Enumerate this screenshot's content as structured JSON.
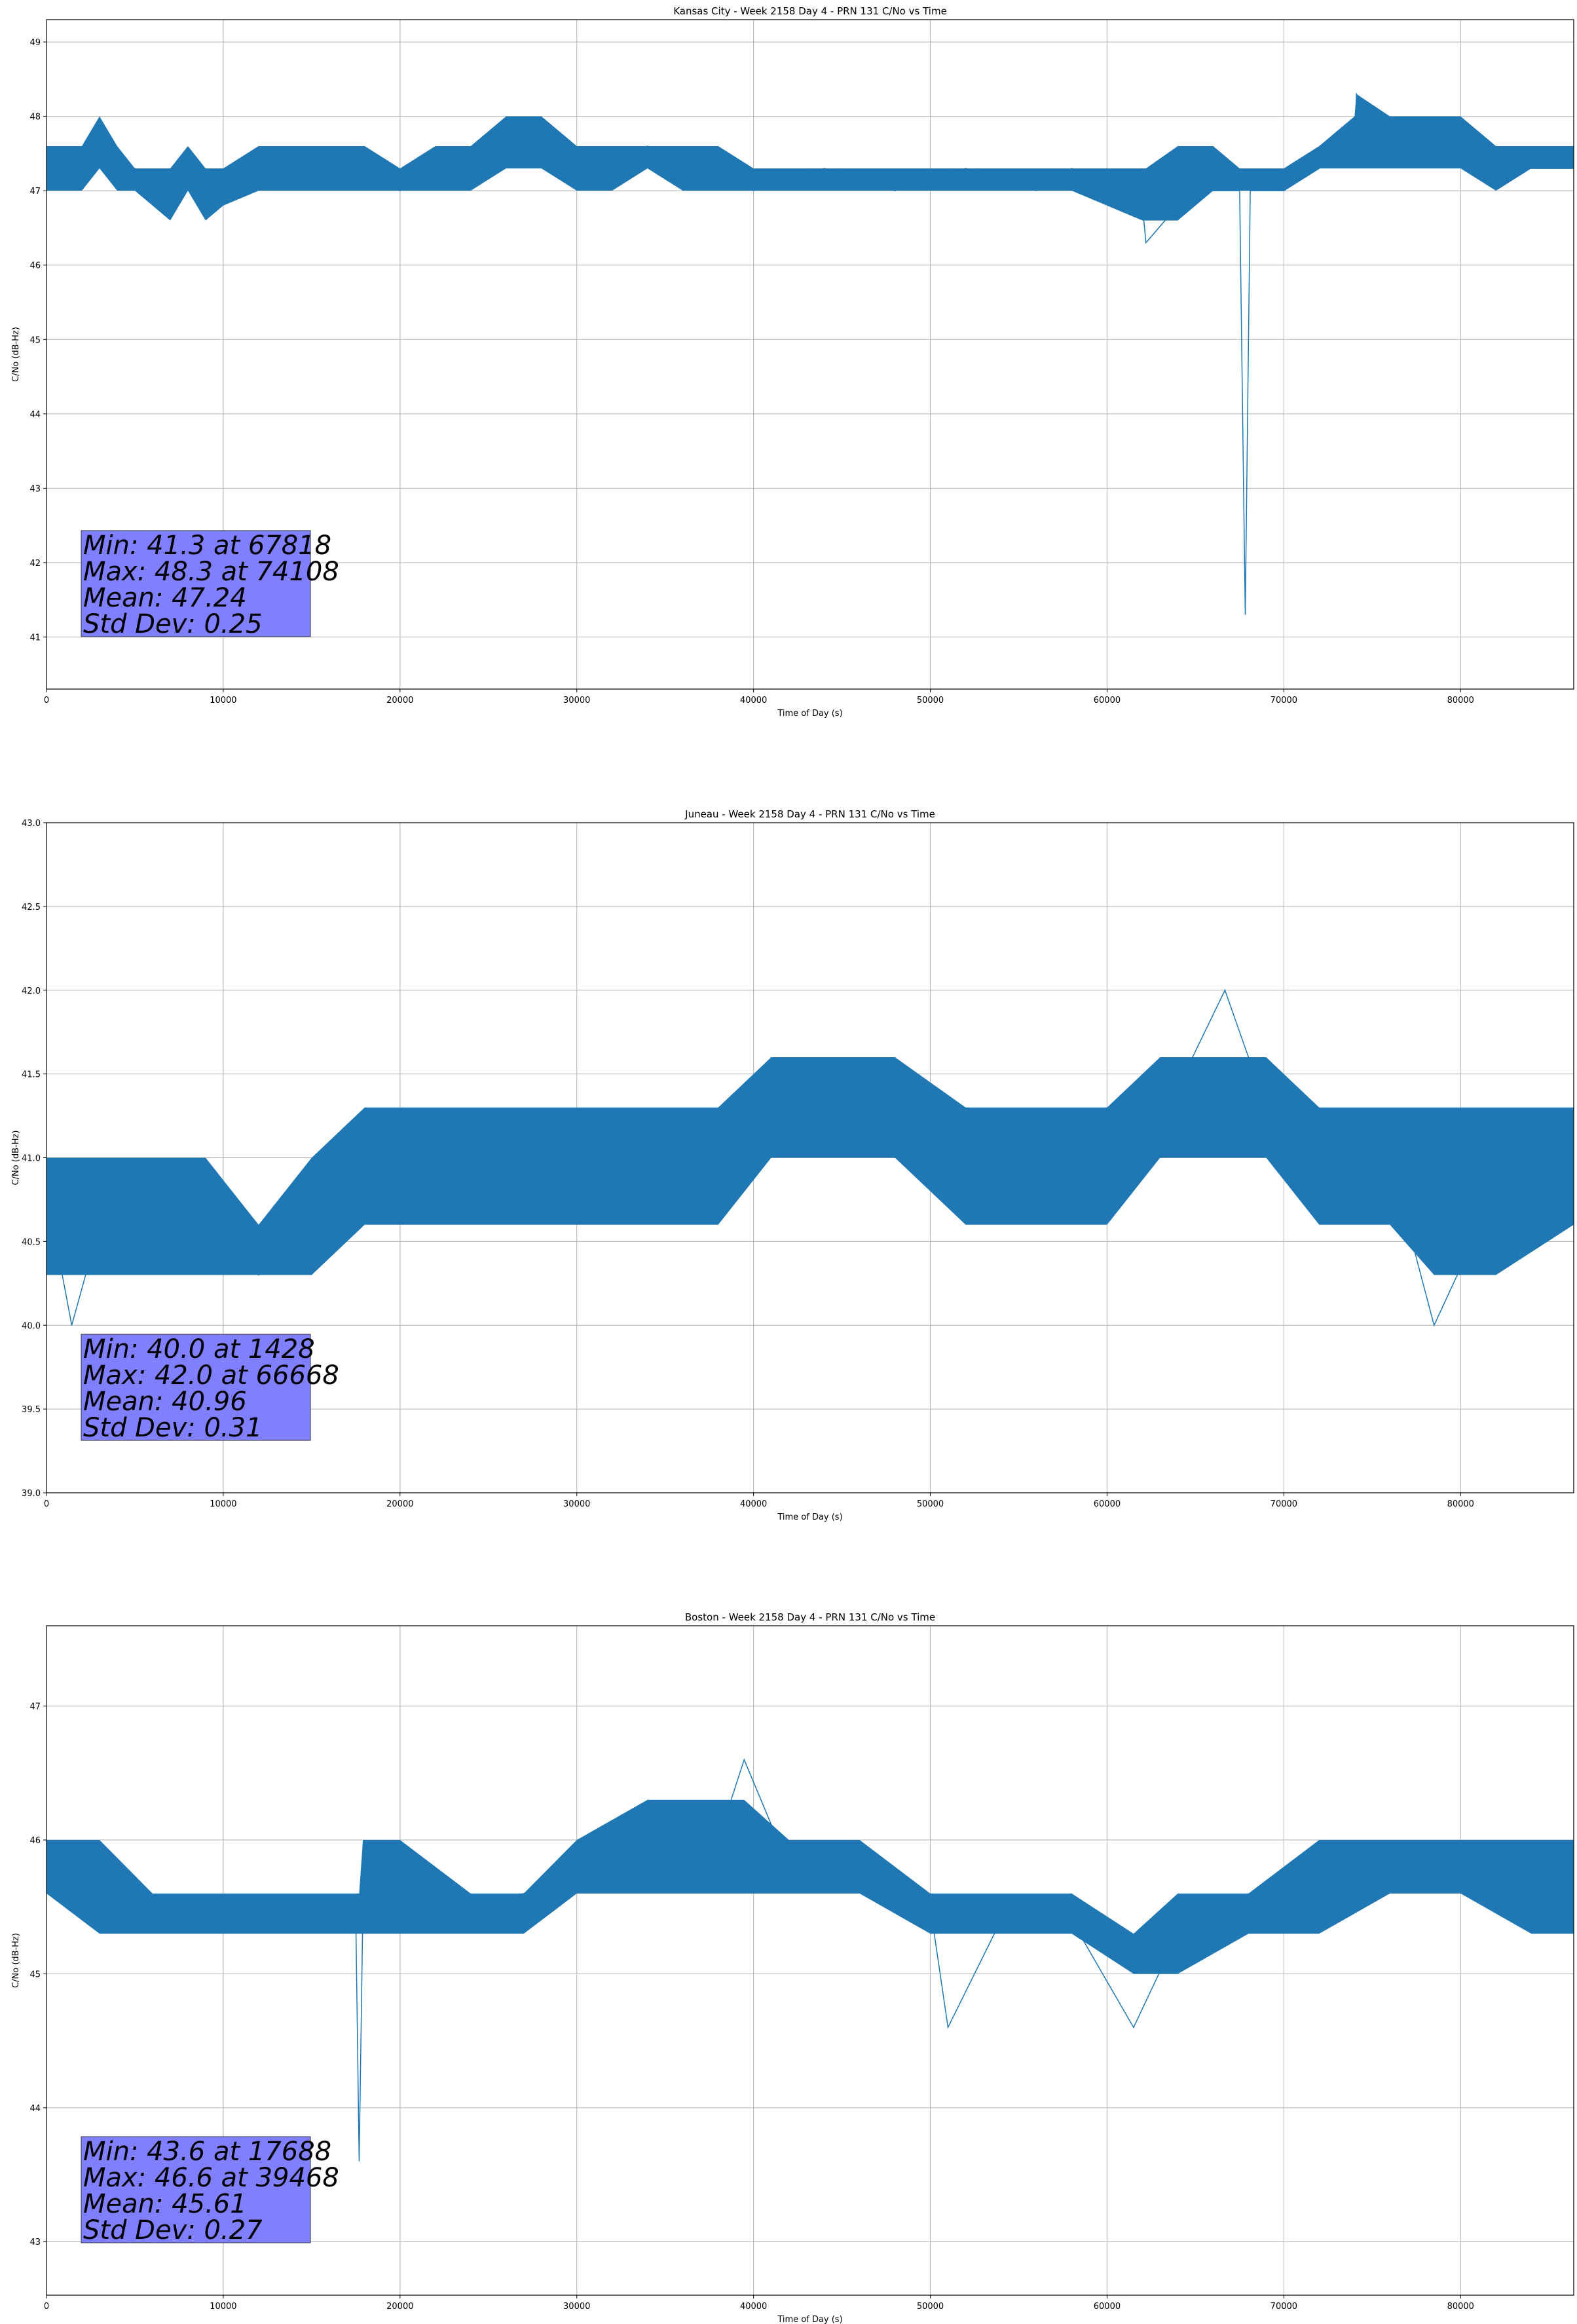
{
  "colors": {
    "line": "#1f77b4",
    "grid": "#b0b0b0",
    "statbox": "#8080ff"
  },
  "chart_data": [
    {
      "type": "line",
      "title": "Kansas City - Week 2158 Day 4 - PRN 131 C/No vs Time",
      "xlabel": "Time of Day (s)",
      "ylabel": "C/No (dB-Hz)",
      "xlim": [
        0,
        86400
      ],
      "ylim": [
        40.3,
        49.3
      ],
      "xticks": [
        0,
        10000,
        20000,
        30000,
        40000,
        50000,
        60000,
        70000,
        80000
      ],
      "yticks": [
        41,
        42,
        43,
        44,
        45,
        46,
        47,
        48,
        49
      ],
      "grid": true,
      "stats": [
        "Min: 41.3 at 67818",
        "Max: 48.3 at 74108",
        "Mean: 47.24",
        "Std Dev: 0.25"
      ],
      "series": [
        {
          "x": [
            0,
            2000,
            3000,
            4000,
            5000,
            7000,
            8000,
            9000,
            10000,
            12000,
            15000,
            18000,
            20000,
            22000,
            24000,
            26000,
            28000,
            30000,
            32000,
            34000,
            36000,
            38000,
            40000,
            44000,
            48000,
            52000,
            56000,
            58000,
            60000,
            62000,
            62200,
            64000,
            66000,
            67500,
            67818,
            68100,
            70000,
            72000,
            74000,
            74108,
            76000,
            78000,
            80000,
            82000,
            84000,
            86400
          ],
          "y": [
            47.3,
            47.3,
            47.6,
            47.3,
            47.3,
            47.0,
            47.3,
            46.8,
            47.0,
            47.3,
            47.3,
            47.3,
            47.0,
            47.3,
            47.3,
            47.6,
            47.6,
            47.3,
            47.3,
            47.6,
            47.3,
            47.3,
            47.0,
            47.3,
            47.0,
            47.3,
            47.0,
            47.3,
            47.0,
            46.8,
            46.3,
            46.8,
            47.0,
            47.0,
            41.3,
            47.0,
            47.0,
            47.3,
            47.6,
            48.3,
            47.6,
            47.6,
            47.6,
            47.3,
            47.3,
            47.3
          ],
          "band_low": [
            47.0,
            47.0,
            47.3,
            47.0,
            47.0,
            46.6,
            47.0,
            46.6,
            46.8,
            47.0,
            47.0,
            47.0,
            47.0,
            47.0,
            47.0,
            47.3,
            47.3,
            47.0,
            47.0,
            47.3,
            47.0,
            47.0,
            47.0,
            47.0,
            47.0,
            47.0,
            47.0,
            47.0,
            46.8,
            46.6,
            46.6,
            46.6,
            47.0,
            47.0,
            47.0,
            47.0,
            47.0,
            47.3,
            47.3,
            47.3,
            47.3,
            47.3,
            47.3,
            47.0,
            47.3,
            47.3
          ],
          "band_high": [
            47.6,
            47.6,
            48.0,
            47.6,
            47.3,
            47.3,
            47.6,
            47.3,
            47.3,
            47.6,
            47.6,
            47.6,
            47.3,
            47.6,
            47.6,
            48.0,
            48.0,
            47.6,
            47.6,
            47.6,
            47.6,
            47.6,
            47.3,
            47.3,
            47.3,
            47.3,
            47.3,
            47.3,
            47.3,
            47.3,
            47.3,
            47.6,
            47.6,
            47.3,
            47.3,
            47.3,
            47.3,
            47.6,
            48.0,
            48.3,
            48.0,
            48.0,
            48.0,
            47.6,
            47.6,
            47.6
          ]
        }
      ]
    },
    {
      "type": "line",
      "title": "Juneau - Week 2158 Day 4 - PRN 131 C/No vs Time",
      "xlabel": "Time of Day (s)",
      "ylabel": "C/No (dB-Hz)",
      "xlim": [
        0,
        86400
      ],
      "ylim": [
        39.0,
        43.0
      ],
      "xticks": [
        0,
        10000,
        20000,
        30000,
        40000,
        50000,
        60000,
        70000,
        80000
      ],
      "yticks": [
        39.0,
        39.5,
        40.0,
        40.5,
        41.0,
        41.5,
        42.0,
        42.5,
        43.0
      ],
      "grid": true,
      "stats": [
        "Min: 40.0 at 1428",
        "Max: 42.0 at 66668",
        "Mean: 40.96",
        "Std Dev: 0.31"
      ],
      "series": [
        {
          "x": [
            0,
            1428,
            3000,
            6000,
            9000,
            12000,
            15000,
            18000,
            22000,
            26000,
            30000,
            34000,
            38000,
            41000,
            44000,
            48000,
            52000,
            56000,
            60000,
            63000,
            66668,
            69000,
            72000,
            76000,
            78500,
            82000,
            86400
          ],
          "y": [
            40.8,
            40.0,
            40.6,
            40.6,
            40.5,
            40.3,
            40.5,
            40.8,
            41.0,
            41.2,
            41.2,
            41.0,
            40.8,
            41.2,
            41.3,
            41.2,
            41.2,
            41.0,
            41.0,
            41.2,
            42.0,
            41.3,
            41.2,
            41.0,
            40.0,
            40.8,
            40.8
          ],
          "band_low": [
            40.3,
            40.3,
            40.3,
            40.3,
            40.3,
            40.3,
            40.3,
            40.6,
            40.6,
            40.6,
            40.6,
            40.6,
            40.6,
            41.0,
            41.0,
            41.0,
            40.6,
            40.6,
            40.6,
            41.0,
            41.0,
            41.0,
            40.6,
            40.6,
            40.3,
            40.3,
            40.6
          ],
          "band_high": [
            41.0,
            41.0,
            41.0,
            41.0,
            41.0,
            40.6,
            41.0,
            41.3,
            41.3,
            41.3,
            41.3,
            41.3,
            41.3,
            41.6,
            41.6,
            41.6,
            41.3,
            41.3,
            41.3,
            41.6,
            41.6,
            41.6,
            41.3,
            41.3,
            41.3,
            41.3,
            41.3
          ]
        }
      ]
    },
    {
      "type": "line",
      "title": "Boston - Week 2158 Day 4 - PRN 131 C/No vs Time",
      "xlabel": "Time of Day (s)",
      "ylabel": "C/No (dB-Hz)",
      "xlim": [
        0,
        86400
      ],
      "ylim": [
        42.6,
        47.6
      ],
      "xticks": [
        0,
        10000,
        20000,
        30000,
        40000,
        50000,
        60000,
        70000,
        80000
      ],
      "yticks": [
        43,
        44,
        45,
        46,
        47
      ],
      "grid": true,
      "stats": [
        "Min: 43.6 at 17688",
        "Max: 46.6 at 39468",
        "Mean: 45.61",
        "Std Dev: 0.27"
      ],
      "series": [
        {
          "x": [
            0,
            3000,
            6000,
            9000,
            12000,
            15000,
            17500,
            17688,
            17900,
            20000,
            24000,
            27000,
            30000,
            34000,
            38000,
            39468,
            42000,
            46000,
            50000,
            51000,
            54000,
            58000,
            61500,
            64000,
            68000,
            72000,
            76000,
            80000,
            84000,
            86400
          ],
          "y": [
            45.8,
            45.6,
            45.5,
            45.4,
            45.4,
            45.4,
            45.4,
            43.6,
            45.5,
            45.5,
            45.5,
            45.6,
            45.8,
            46.0,
            46.0,
            46.6,
            45.8,
            45.8,
            45.5,
            44.6,
            45.4,
            45.4,
            44.6,
            45.3,
            45.5,
            45.5,
            45.8,
            45.8,
            45.8,
            45.6
          ],
          "band_low": [
            45.6,
            45.3,
            45.3,
            45.3,
            45.3,
            45.3,
            45.3,
            45.3,
            45.3,
            45.3,
            45.3,
            45.3,
            45.6,
            45.6,
            45.6,
            45.6,
            45.6,
            45.6,
            45.3,
            45.3,
            45.3,
            45.3,
            45.0,
            45.0,
            45.3,
            45.3,
            45.6,
            45.6,
            45.3,
            45.3
          ],
          "band_high": [
            46.0,
            46.0,
            45.6,
            45.6,
            45.6,
            45.6,
            45.6,
            45.6,
            46.0,
            46.0,
            45.6,
            45.6,
            46.0,
            46.3,
            46.3,
            46.3,
            46.0,
            46.0,
            45.6,
            45.6,
            45.6,
            45.6,
            45.3,
            45.6,
            45.6,
            46.0,
            46.0,
            46.0,
            46.0,
            46.0
          ]
        }
      ]
    }
  ]
}
